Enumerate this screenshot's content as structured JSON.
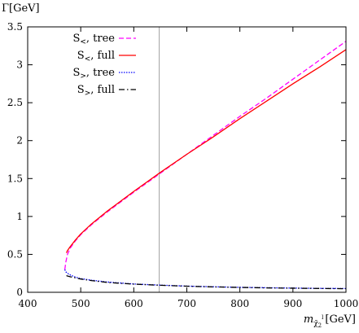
{
  "chart_data": {
    "type": "line",
    "title": "",
    "ylabel": "Γ[GeV]",
    "xlabel": {
      "prefix": "m",
      "subscript": "χ̃",
      "subsub": "2",
      "sup": "l",
      "suffix": "[GeV]"
    },
    "xlim": [
      400,
      1000
    ],
    "ylim": [
      0,
      3.5
    ],
    "xticks": [
      400,
      500,
      600,
      700,
      800,
      900,
      1000
    ],
    "yticks": [
      0,
      0.5,
      1,
      1.5,
      2,
      2.5,
      3,
      3.5
    ],
    "ytick_labels": [
      "0",
      "0.5",
      "1",
      "1.5",
      "2",
      "2.5",
      "3",
      "3.5"
    ],
    "grid": false,
    "vline": 648,
    "legend_position": "top-left",
    "series": [
      {
        "name": "S<, tree",
        "label_main": "S",
        "label_sub": "<",
        "label_rest": ", tree",
        "color": "#ff00ff",
        "style": "dashed",
        "x": [
          470,
          472,
          475,
          480,
          490,
          500,
          520,
          550,
          600,
          650,
          700,
          750,
          800,
          850,
          900,
          950,
          1000
        ],
        "y": [
          0.3,
          0.4,
          0.5,
          0.58,
          0.68,
          0.76,
          0.89,
          1.06,
          1.32,
          1.57,
          1.82,
          2.07,
          2.32,
          2.56,
          2.81,
          3.06,
          3.31
        ]
      },
      {
        "name": "S<, full",
        "label_main": "S",
        "label_sub": "<",
        "label_rest": ", full",
        "color": "#ff0000",
        "style": "solid",
        "x": [
          473,
          475,
          480,
          490,
          500,
          520,
          550,
          600,
          650,
          700,
          750,
          800,
          850,
          900,
          950,
          1000
        ],
        "y": [
          0.52,
          0.55,
          0.6,
          0.69,
          0.77,
          0.9,
          1.07,
          1.33,
          1.58,
          1.82,
          2.05,
          2.29,
          2.52,
          2.75,
          2.97,
          3.2
        ]
      },
      {
        "name": "S>, tree",
        "label_main": "S",
        "label_sub": ">",
        "label_rest": ", tree",
        "color": "#0000ff",
        "style": "dotted",
        "x": [
          470,
          472,
          475,
          480,
          490,
          500,
          520,
          550,
          600,
          650,
          700,
          750,
          800,
          850,
          900,
          950,
          1000
        ],
        "y": [
          0.3,
          0.27,
          0.25,
          0.23,
          0.2,
          0.18,
          0.16,
          0.135,
          0.11,
          0.094,
          0.082,
          0.073,
          0.066,
          0.06,
          0.056,
          0.052,
          0.049
        ]
      },
      {
        "name": "S>, full",
        "label_main": "S",
        "label_sub": ">",
        "label_rest": ", full",
        "color": "#000000",
        "style": "dashdot",
        "x": [
          473,
          475,
          480,
          490,
          500,
          520,
          550,
          600,
          650,
          700,
          750,
          800,
          850,
          900,
          950,
          1000
        ],
        "y": [
          0.22,
          0.215,
          0.205,
          0.19,
          0.175,
          0.155,
          0.13,
          0.107,
          0.092,
          0.08,
          0.071,
          0.064,
          0.058,
          0.054,
          0.05,
          0.047
        ]
      }
    ]
  }
}
